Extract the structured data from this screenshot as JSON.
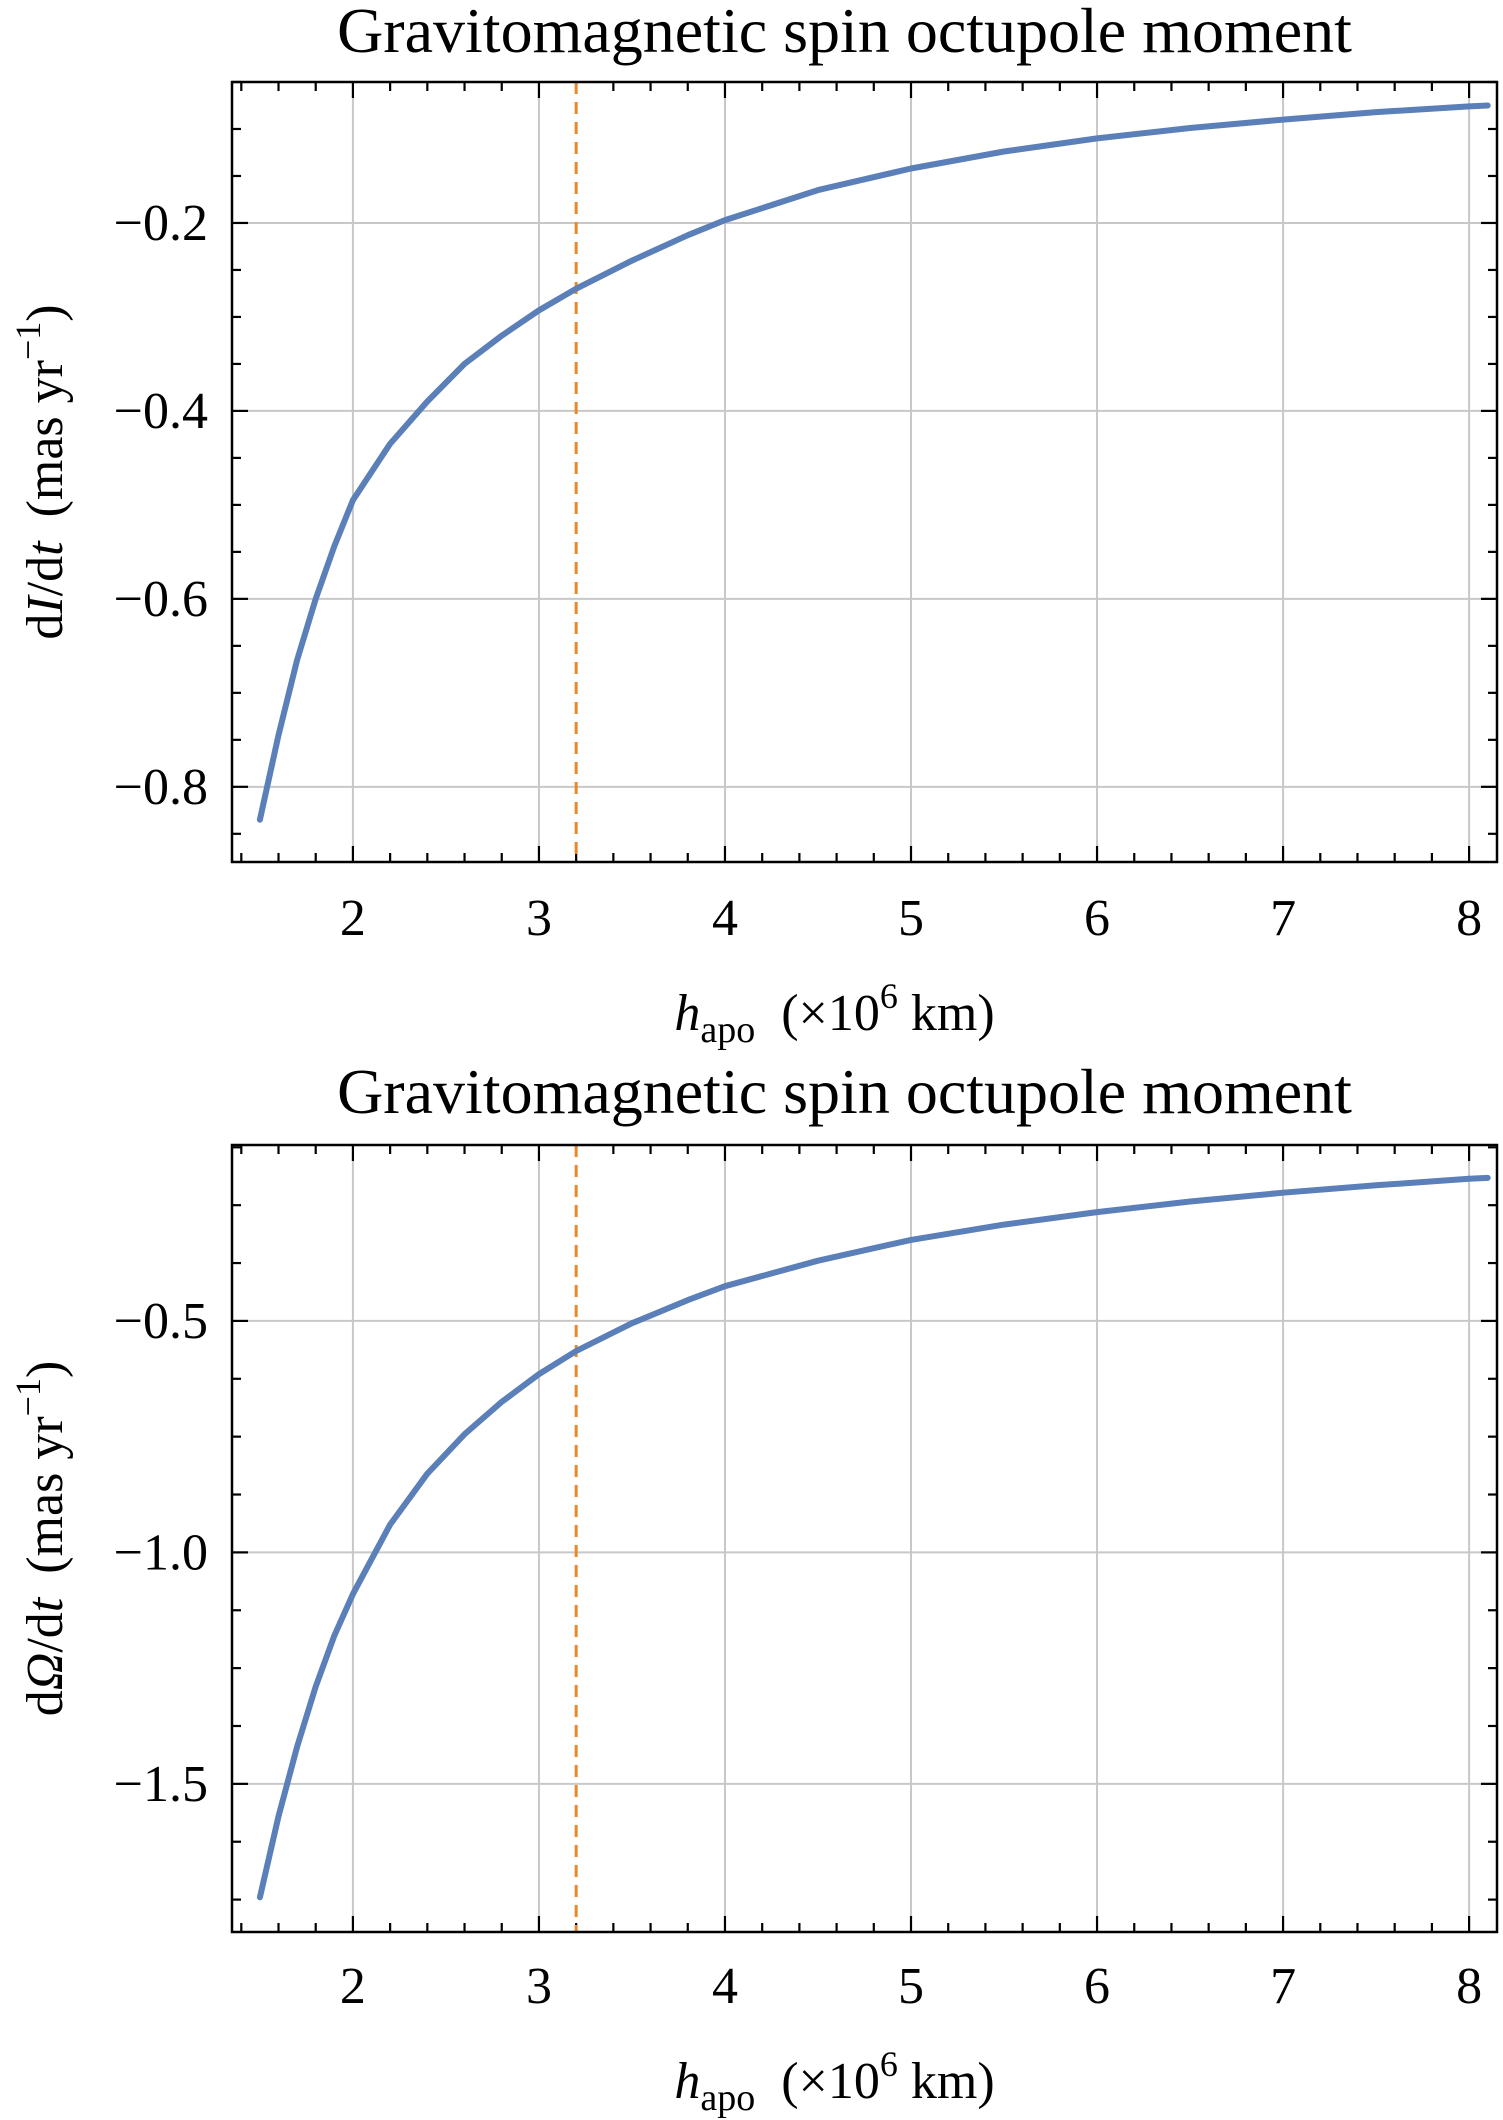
{
  "chart_data": [
    {
      "type": "line",
      "title": "Gravitomagnetic spin octupole moment",
      "xlabel": {
        "var": "h",
        "sub": "apo",
        "unit_pre": "(×10",
        "unit_exp": "6",
        "unit_post": " km)"
      },
      "ylabel": {
        "prefix": "d",
        "var": "I",
        "mid": "/d",
        "var2": "t",
        "unit_pre": "(mas  yr",
        "unit_exp": "−1",
        "unit_post": ")"
      },
      "xlim": [
        1.35,
        8.15
      ],
      "ylim": [
        -0.88,
        -0.05
      ],
      "xticks": [
        2,
        3,
        4,
        5,
        6,
        7,
        8
      ],
      "xtick_labels": [
        "2",
        "3",
        "4",
        "5",
        "6",
        "7",
        "8"
      ],
      "yticks": [
        -0.8,
        -0.6,
        -0.4,
        -0.2
      ],
      "ytick_labels": [
        "−0.8",
        "−0.6",
        "−0.4",
        "−0.2"
      ],
      "grid": true,
      "reference_line": {
        "x": 3.2,
        "style": "dashed",
        "color": "#e8882a"
      },
      "series": [
        {
          "name": "dI/dt",
          "color": "#5b7fb8",
          "x": [
            1.5,
            1.6,
            1.7,
            1.8,
            1.9,
            2.0,
            2.2,
            2.4,
            2.6,
            2.8,
            3.0,
            3.2,
            3.5,
            3.8,
            4.0,
            4.5,
            5.0,
            5.5,
            6.0,
            6.5,
            7.0,
            7.5,
            8.0,
            8.1
          ],
          "values": [
            -0.835,
            -0.745,
            -0.665,
            -0.6,
            -0.544,
            -0.495,
            -0.435,
            -0.39,
            -0.35,
            -0.32,
            -0.293,
            -0.27,
            -0.24,
            -0.213,
            -0.197,
            -0.165,
            -0.142,
            -0.124,
            -0.11,
            -0.099,
            -0.09,
            -0.082,
            -0.076,
            -0.075
          ]
        }
      ]
    },
    {
      "type": "line",
      "title": "Gravitomagnetic spin octupole moment",
      "xlabel": {
        "var": "h",
        "sub": "apo",
        "unit_pre": "(×10",
        "unit_exp": "6",
        "unit_post": " km)"
      },
      "ylabel": {
        "prefix": "d",
        "var": "Ω",
        "mid": "/d",
        "var2": "t",
        "unit_pre": "(mas  yr",
        "unit_exp": "−1",
        "unit_post": ")"
      },
      "xlim": [
        1.35,
        8.15
      ],
      "ylim": [
        -1.82,
        -0.12
      ],
      "xticks": [
        2,
        3,
        4,
        5,
        6,
        7,
        8
      ],
      "xtick_labels": [
        "2",
        "3",
        "4",
        "5",
        "6",
        "7",
        "8"
      ],
      "yticks": [
        -1.5,
        -1.0,
        -0.5
      ],
      "ytick_labels": [
        "−1.5",
        "−1.0",
        "−0.5"
      ],
      "grid": true,
      "reference_line": {
        "x": 3.2,
        "style": "dashed",
        "color": "#e8882a"
      },
      "series": [
        {
          "name": "dΩ/dt",
          "color": "#5b7fb8",
          "x": [
            1.5,
            1.6,
            1.7,
            1.8,
            1.9,
            2.0,
            2.2,
            2.4,
            2.6,
            2.8,
            3.0,
            3.2,
            3.5,
            3.8,
            4.0,
            4.5,
            5.0,
            5.5,
            6.0,
            6.5,
            7.0,
            7.5,
            8.0,
            8.1
          ],
          "values": [
            -1.745,
            -1.57,
            -1.42,
            -1.29,
            -1.18,
            -1.09,
            -0.94,
            -0.83,
            -0.745,
            -0.675,
            -0.615,
            -0.565,
            -0.505,
            -0.455,
            -0.425,
            -0.37,
            -0.325,
            -0.292,
            -0.265,
            -0.242,
            -0.223,
            -0.207,
            -0.193,
            -0.191
          ]
        }
      ]
    }
  ]
}
